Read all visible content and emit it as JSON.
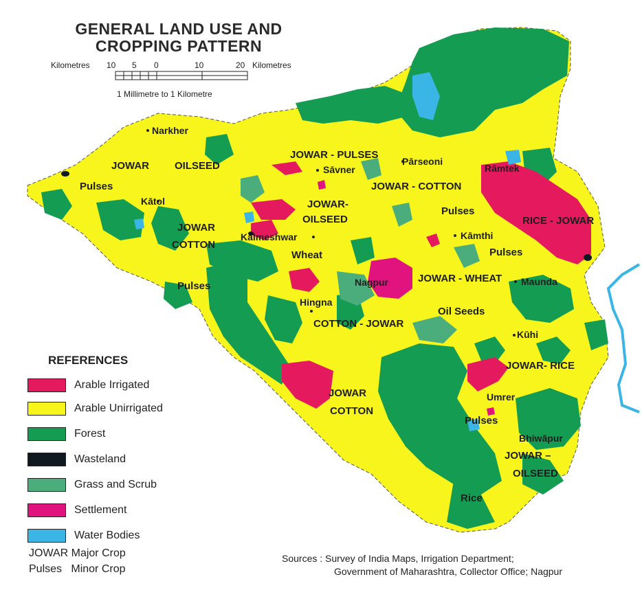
{
  "title_line1": "GENERAL LAND USE AND",
  "title_line2": "CROPPING PATTERN",
  "scale": {
    "left_label": "Kilometres",
    "right_label": "Kilometres",
    "ticks": [
      "10",
      "5",
      "0",
      "10",
      "20"
    ],
    "note": "1 Millimetre to 1 Kilometre"
  },
  "colors": {
    "arable_irrigated": "#e5195e",
    "arable_unirrigated": "#f7f51c",
    "forest": "#139c52",
    "wasteland": "#101820",
    "grass_scrub": "#4cad7c",
    "settlement": "#e0137f",
    "water": "#3ab5e6"
  },
  "places": [
    {
      "id": "narkher",
      "text": "Narkher"
    },
    {
      "id": "katol",
      "text": "Kātol"
    },
    {
      "id": "kalmeshwar",
      "text": "Kalmeshwar"
    },
    {
      "id": "savner",
      "text": "Sāvner"
    },
    {
      "id": "parseoni",
      "text": "Pārseoni"
    },
    {
      "id": "ramtek",
      "text": "Rāmtek"
    },
    {
      "id": "kamthi",
      "text": "Kāmthi"
    },
    {
      "id": "nagpur",
      "text": "Nagpur"
    },
    {
      "id": "hingna",
      "text": "Hingna"
    },
    {
      "id": "maunda",
      "text": "Maunda"
    },
    {
      "id": "kuhi",
      "text": "Kūhi"
    },
    {
      "id": "umrer",
      "text": "Umrer"
    },
    {
      "id": "bhiwapur",
      "text": "Bhiwāpur"
    }
  ],
  "crops": [
    {
      "id": "jowar1",
      "text": "JOWAR"
    },
    {
      "id": "oilseed1",
      "text": "OILSEED"
    },
    {
      "id": "pulses1",
      "text": "Pulses"
    },
    {
      "id": "jowar2",
      "text": "JOWAR"
    },
    {
      "id": "cotton1",
      "text": "COTTON"
    },
    {
      "id": "pulses2",
      "text": "Pulses"
    },
    {
      "id": "jowar_pulses",
      "text": "JOWAR - PULSES"
    },
    {
      "id": "jowar_oil_a",
      "text": "JOWAR-"
    },
    {
      "id": "jowar_oil_b",
      "text": "OILSEED"
    },
    {
      "id": "wheat",
      "text": "Wheat"
    },
    {
      "id": "jowar_cotton",
      "text": "JOWAR - COTTON"
    },
    {
      "id": "pulses3",
      "text": "Pulses"
    },
    {
      "id": "rice_jowar",
      "text": "RICE - JOWAR"
    },
    {
      "id": "pulses4",
      "text": "Pulses"
    },
    {
      "id": "jowar_wheat",
      "text": "JOWAR - WHEAT"
    },
    {
      "id": "oil_seeds",
      "text": "Oil Seeds"
    },
    {
      "id": "cotton_jowar",
      "text": "COTTON - JOWAR"
    },
    {
      "id": "jowar_rice",
      "text": "JOWAR- RICE"
    },
    {
      "id": "jowar3",
      "text": "JOWAR"
    },
    {
      "id": "cotton2",
      "text": "COTTON"
    },
    {
      "id": "pulses5",
      "text": "Pulses"
    },
    {
      "id": "jowar_dash",
      "text": "JOWAR –"
    },
    {
      "id": "oilseed3",
      "text": "OILSEED"
    },
    {
      "id": "rice",
      "text": "Rice"
    }
  ],
  "legend": {
    "title": "REFERENCES",
    "items": [
      {
        "label": "Arable Irrigated",
        "color": "#e5195e"
      },
      {
        "label": "Arable Unirrigated",
        "color": "#f7f51c"
      },
      {
        "label": "Forest",
        "color": "#139c52"
      },
      {
        "label": "Wasteland",
        "color": "#101820"
      },
      {
        "label": "Grass and Scrub",
        "color": "#4cad7c"
      },
      {
        "label": "Settlement",
        "color": "#e0137f"
      },
      {
        "label": "Water Bodies",
        "color": "#3ab5e6"
      }
    ],
    "major_crop": "JOWAR Major Crop",
    "minor_crop": "Pulses   Minor Crop"
  },
  "sources": {
    "line1": "Sources : Survey of India Maps, Irrigation Department;",
    "line2": "Government of Maharashtra, Collector Office; Nagpur"
  }
}
